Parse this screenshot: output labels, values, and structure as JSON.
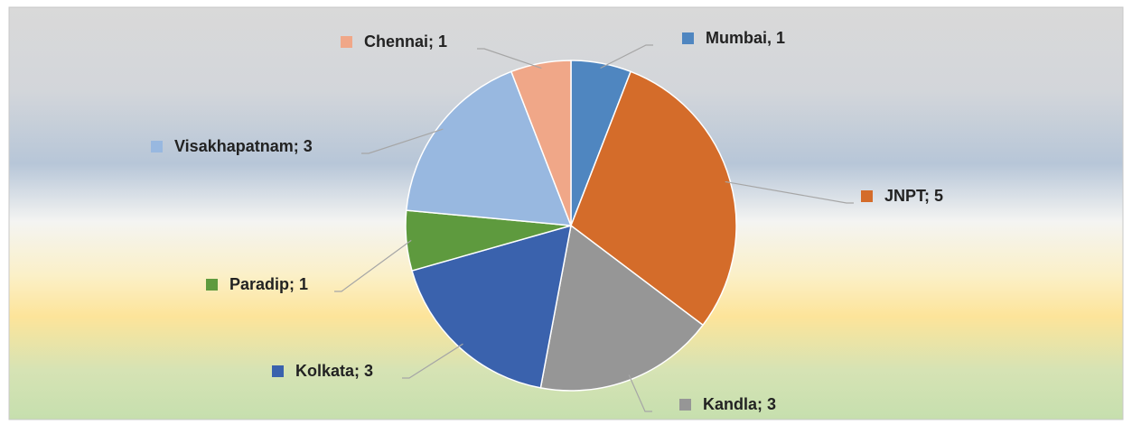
{
  "chart_data": {
    "type": "pie",
    "categories": [
      "Mumbai",
      "JNPT",
      "Kandla",
      "Kolkata",
      "Paradip",
      "Visakhapatnam",
      "Chennai"
    ],
    "values": [
      1,
      5,
      3,
      3,
      1,
      3,
      1
    ],
    "value_labels": [
      "Mumbai, 1",
      "JNPT; 5",
      "Kandla; 3",
      "Kolkata; 3",
      "Paradip; 1",
      "Visakhapatnam; 3",
      "Chennai; 1"
    ],
    "colors": [
      "#4f86c0",
      "#d46c2a",
      "#969696",
      "#3a62ad",
      "#5e9a3e",
      "#98b8e0",
      "#f0a788"
    ]
  }
}
